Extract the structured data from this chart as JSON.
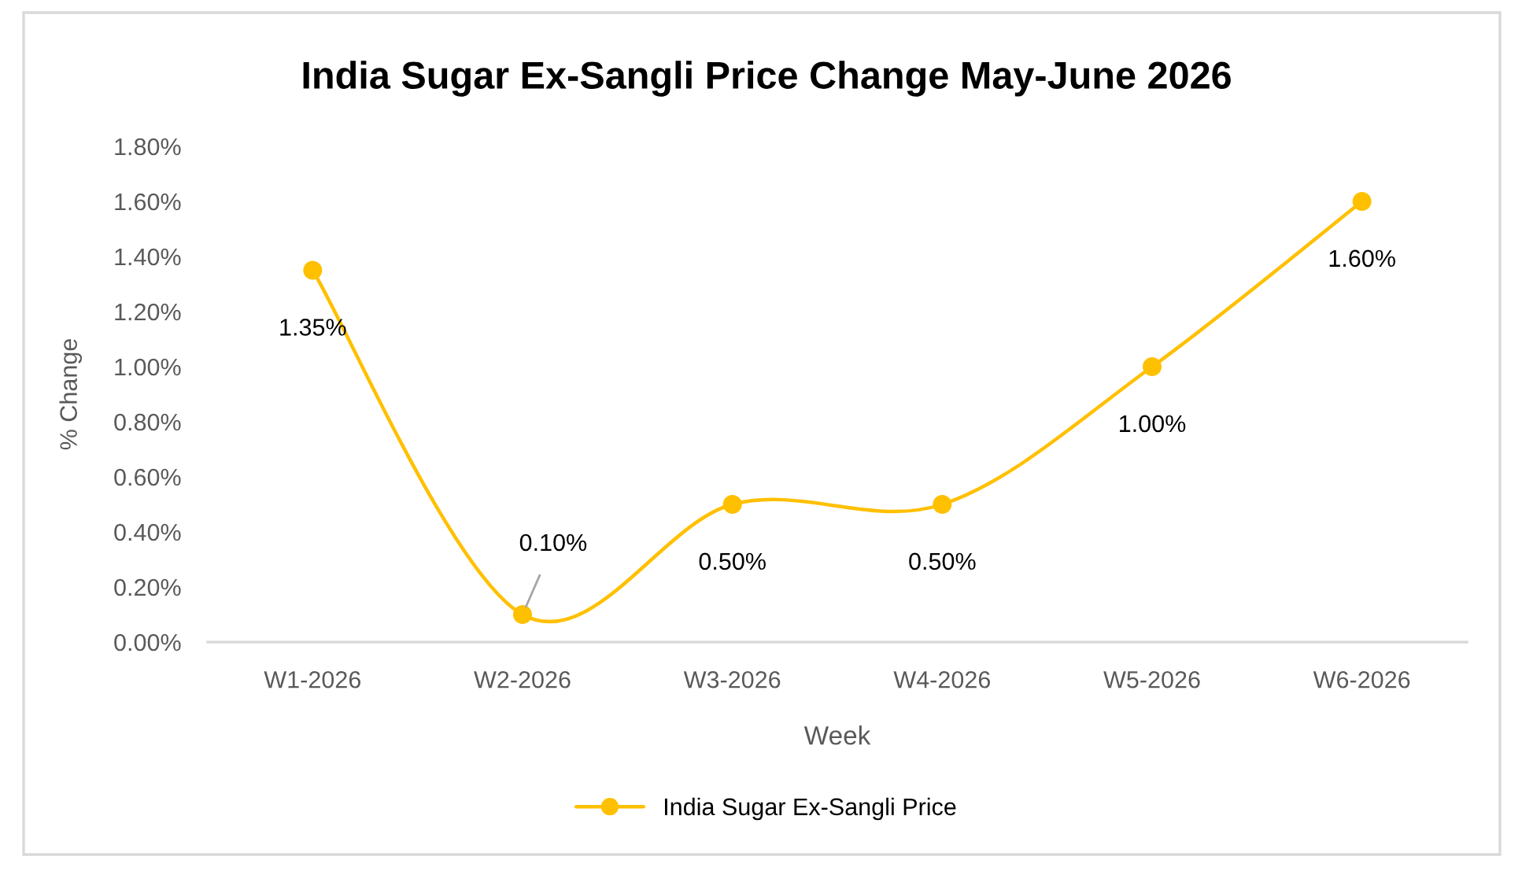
{
  "chart_data": {
    "type": "line",
    "title": "India Sugar Ex-Sangli Price Change May-June 2026",
    "xlabel": "Week",
    "ylabel": "% Change",
    "categories": [
      "W1-2026",
      "W2-2026",
      "W3-2026",
      "W4-2026",
      "W5-2026",
      "W6-2026"
    ],
    "series": [
      {
        "name": "India Sugar Ex-Sangli Price",
        "color": "#ffc000",
        "values": [
          1.35,
          0.1,
          0.5,
          0.5,
          1.0,
          1.6
        ],
        "value_labels": [
          "1.35%",
          "0.10%",
          "0.50%",
          "0.50%",
          "1.00%",
          "1.60%"
        ]
      }
    ],
    "ylim": [
      0,
      1.8
    ],
    "yticks": [
      {
        "value": 0,
        "label": "0.00%"
      },
      {
        "value": 0.2,
        "label": "0.20%"
      },
      {
        "value": 0.4,
        "label": "0.40%"
      },
      {
        "value": 0.6,
        "label": "0.60%"
      },
      {
        "value": 0.8,
        "label": "0.80%"
      },
      {
        "value": 1.0,
        "label": "1.00%"
      },
      {
        "value": 1.2,
        "label": "1.20%"
      },
      {
        "value": 1.4,
        "label": "1.40%"
      },
      {
        "value": 1.6,
        "label": "1.60%"
      },
      {
        "value": 1.8,
        "label": "1.80%"
      }
    ],
    "grid": false,
    "legend": "bottom",
    "marker": "circle",
    "line_style": "solid"
  }
}
